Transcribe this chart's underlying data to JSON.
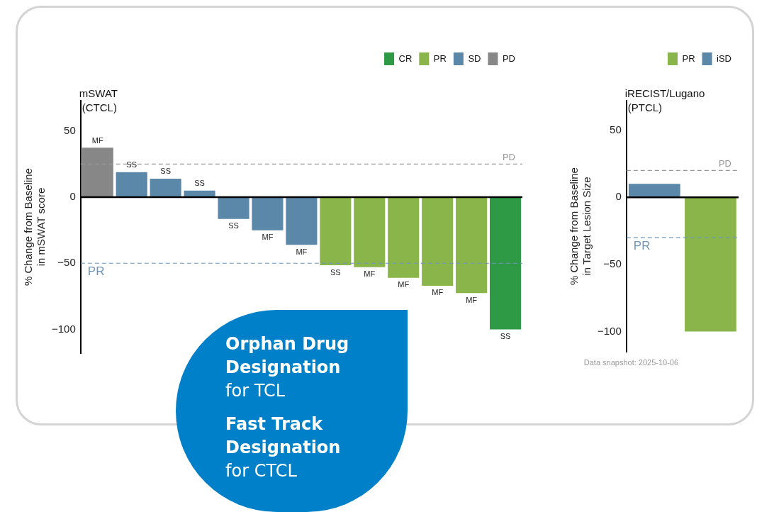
{
  "chart_data": [
    {
      "type": "bar",
      "title": "mSWAT (CTCL)",
      "ylabel": "% Change from Baseline in mSWAT score",
      "categories": [
        null,
        null,
        null,
        null,
        null,
        null,
        null,
        null,
        null,
        null,
        null,
        null,
        null
      ],
      "series": [
        {
          "name": "CR",
          "color": "#2e9a45",
          "values": [
            null,
            null,
            null,
            null,
            null,
            null,
            null,
            null,
            null,
            null,
            null,
            null,
            -100
          ],
          "value_labels": [
            null,
            null,
            null,
            null,
            null,
            null,
            null,
            null,
            null,
            null,
            null,
            null,
            "SS"
          ]
        },
        {
          "name": "PR",
          "color": "#8ab54a",
          "values": [
            null,
            null,
            null,
            null,
            null,
            null,
            null,
            -51.5,
            -53,
            -61,
            -67,
            -72.5,
            null
          ],
          "value_labels": [
            null,
            null,
            null,
            null,
            null,
            null,
            null,
            "SS",
            "MF",
            "MF",
            "MF",
            "MF",
            null
          ]
        },
        {
          "name": "SD",
          "color": "#5b87a8",
          "values": [
            null,
            19,
            14,
            5,
            -16.5,
            -25,
            -36,
            null,
            null,
            null,
            null,
            null,
            null
          ],
          "value_labels": [
            null,
            "SS",
            "SS",
            "SS",
            "SS",
            "MF",
            "MF",
            null,
            null,
            null,
            null,
            null,
            null
          ]
        },
        {
          "name": "PD",
          "color": "#878787",
          "values": [
            37.5,
            null,
            null,
            null,
            null,
            null,
            null,
            null,
            null,
            null,
            null,
            null,
            null
          ],
          "value_labels": [
            "MF",
            null,
            null,
            null,
            null,
            null,
            null,
            null,
            null,
            null,
            null,
            null,
            null
          ]
        }
      ],
      "ylim": [
        -118,
        73
      ],
      "yticks": [
        -100,
        -50,
        0,
        50
      ],
      "tick_labels": "y",
      "legend": "top right",
      "ref_lines": [
        {
          "axis": "y",
          "value": 25,
          "label": "PD",
          "color": "#999999",
          "line_style": "dashed"
        },
        {
          "axis": "y",
          "value": -50,
          "label": "PR",
          "color": "#6f95b8",
          "line_style": "dashed"
        }
      ],
      "annotations": [
        "Orphan Drug Designation",
        "for TCL",
        "Fast Track Designation",
        "for CTCL"
      ]
    },
    {
      "type": "bar",
      "title": "iRECIST/Lugano (PTCL)",
      "ylabel": "% Change from Baseline in Target Lesion Size",
      "categories": [
        null,
        null
      ],
      "series": [
        {
          "name": "PR",
          "color": "#8ab54a",
          "values": [
            null,
            -100
          ]
        },
        {
          "name": "iSD",
          "color": "#5b87a8",
          "values": [
            10,
            null
          ]
        }
      ],
      "ylim": [
        -115,
        72
      ],
      "yticks": [
        -100,
        -50,
        0,
        50
      ],
      "tick_labels": "y",
      "legend": "top right",
      "ref_lines": [
        {
          "axis": "y",
          "value": 20,
          "label": "PD",
          "color": "#999999",
          "line_style": "dashed"
        },
        {
          "axis": "y",
          "value": -30,
          "label": "PR",
          "color": "#6f95b8",
          "line_style": "dashed"
        }
      ],
      "annotations": [
        "Data snapshot: 2025-10-06"
      ]
    }
  ]
}
